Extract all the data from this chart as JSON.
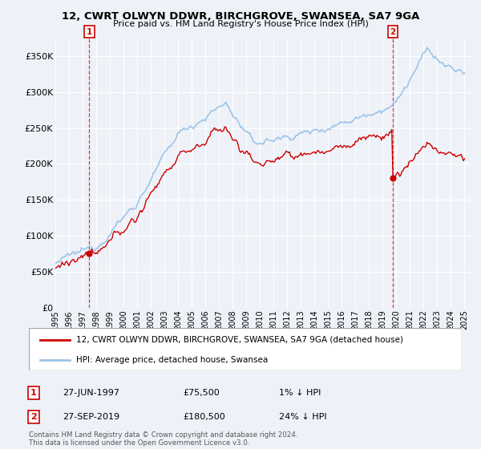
{
  "title_line1": "12, CWRT OLWYN DDWR, BIRCHGROVE, SWANSEA, SA7 9GA",
  "title_line2": "Price paid vs. HM Land Registry's House Price Index (HPI)",
  "ylabel_ticks": [
    "£0",
    "£50K",
    "£100K",
    "£150K",
    "£200K",
    "£250K",
    "£300K",
    "£350K"
  ],
  "ytick_values": [
    0,
    50000,
    100000,
    150000,
    200000,
    250000,
    300000,
    350000
  ],
  "ylim": [
    0,
    375000
  ],
  "xlim_start": 1995.0,
  "xlim_end": 2025.5,
  "purchase1_date": 1997.49,
  "purchase1_price": 75500,
  "purchase2_date": 2019.74,
  "purchase2_price": 180500,
  "legend_line1": "12, CWRT OLWYN DDWR, BIRCHGROVE, SWANSEA, SA7 9GA (detached house)",
  "legend_line2": "HPI: Average price, detached house, Swansea",
  "annotation1_date": "27-JUN-1997",
  "annotation1_price": "£75,500",
  "annotation1_hpi": "1% ↓ HPI",
  "annotation2_date": "27-SEP-2019",
  "annotation2_price": "£180,500",
  "annotation2_hpi": "24% ↓ HPI",
  "footer": "Contains HM Land Registry data © Crown copyright and database right 2024.\nThis data is licensed under the Open Government Licence v3.0.",
  "hpi_color": "#9ec4e8",
  "price_color": "#cc0000",
  "bg_color": "#eef2f8",
  "plot_bg": "#eef2f8",
  "grid_color": "#ffffff",
  "box_color": "#cc0000"
}
